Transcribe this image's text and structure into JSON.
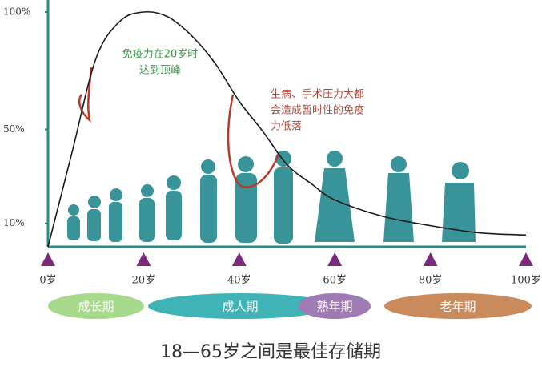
{
  "chart_data": {
    "type": "line",
    "x": [
      0,
      5,
      10,
      15,
      20,
      25,
      30,
      35,
      40,
      45,
      50,
      55,
      60,
      70,
      80,
      90,
      100
    ],
    "values": [
      0,
      40,
      80,
      96,
      100,
      98,
      90,
      78,
      62,
      49,
      35,
      27,
      20,
      13,
      9,
      6,
      5
    ],
    "color": "#1a1a1a",
    "axis_color": "#2a8a8a",
    "tick_marker_color": "#7b2a7b",
    "xlim": [
      0,
      100
    ],
    "ylim": [
      0,
      100
    ],
    "xticks": [
      {
        "value": 0,
        "label": "0岁"
      },
      {
        "value": 20,
        "label": "20岁"
      },
      {
        "value": 40,
        "label": "40岁"
      },
      {
        "value": 60,
        "label": "60岁"
      },
      {
        "value": 80,
        "label": "80岁"
      },
      {
        "value": 100,
        "label": "100岁"
      }
    ],
    "yticks": [
      {
        "value": 10,
        "label": "10%"
      },
      {
        "value": 50,
        "label": "50%"
      },
      {
        "value": 100,
        "label": "100%"
      }
    ],
    "annotations": [
      {
        "lines": [
          "免疫力在20岁时",
          "达到顶峰"
        ],
        "color": "#3a9a4a"
      },
      {
        "lines": [
          "生病、手术压力大都",
          "会造成暂时性的免疫",
          "力低落"
        ],
        "color": "#b0483a"
      }
    ],
    "phases": [
      {
        "label": "成长期",
        "color": "#a6d98c"
      },
      {
        "label": "成人期",
        "color": "#3fb3b5"
      },
      {
        "label": "熟年期",
        "color": "#a07ab2"
      },
      {
        "label": "老年期",
        "color": "#c98a5c"
      }
    ],
    "footer": "18—65岁之间是最佳存储期"
  }
}
